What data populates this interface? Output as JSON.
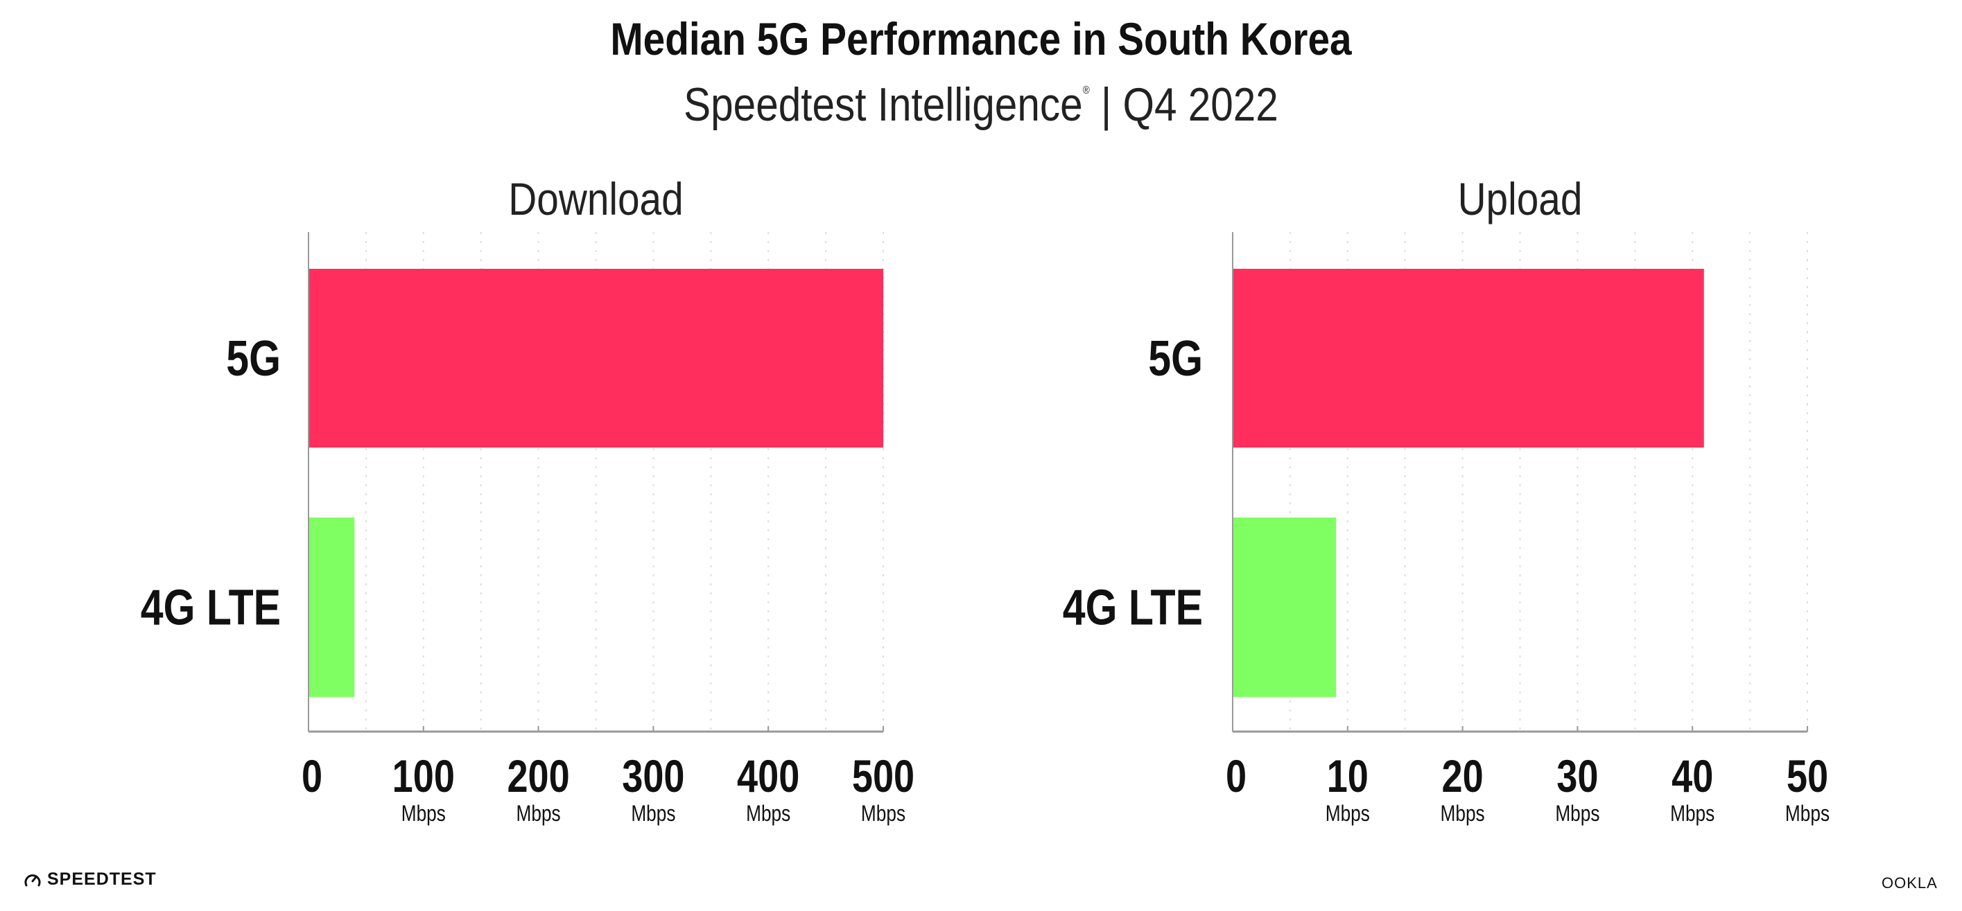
{
  "title": "Median 5G Performance in South Korea",
  "subtitle": "Speedtest Intelligence",
  "subtitle_mark": "®",
  "subtitle_period": "| Q4 2022",
  "colors": {
    "5G": "#ff2e5c",
    "4G LTE": "#80ff62",
    "axis": "#999999",
    "grid": "#dddddd"
  },
  "logos": {
    "left": "SPEEDTEST",
    "right": "OOKLA"
  },
  "chart_data": [
    {
      "type": "bar",
      "orientation": "horizontal",
      "title": "Download",
      "categories": [
        "5G",
        "4G LTE"
      ],
      "values": [
        500,
        40
      ],
      "xlim": [
        0,
        500
      ],
      "xticks": [
        "0",
        "100",
        "200",
        "300",
        "400",
        "500"
      ],
      "tick_values": [
        0,
        100,
        200,
        300,
        400,
        500
      ],
      "tick_unit": "Mbps",
      "grid": true
    },
    {
      "type": "bar",
      "orientation": "horizontal",
      "title": "Upload",
      "categories": [
        "5G",
        "4G LTE"
      ],
      "values": [
        41,
        9
      ],
      "xlim": [
        0,
        50
      ],
      "xticks": [
        "0",
        "10",
        "20",
        "30",
        "40",
        "50"
      ],
      "tick_values": [
        0,
        10,
        20,
        30,
        40,
        50
      ],
      "tick_unit": "Mbps",
      "grid": true
    }
  ]
}
